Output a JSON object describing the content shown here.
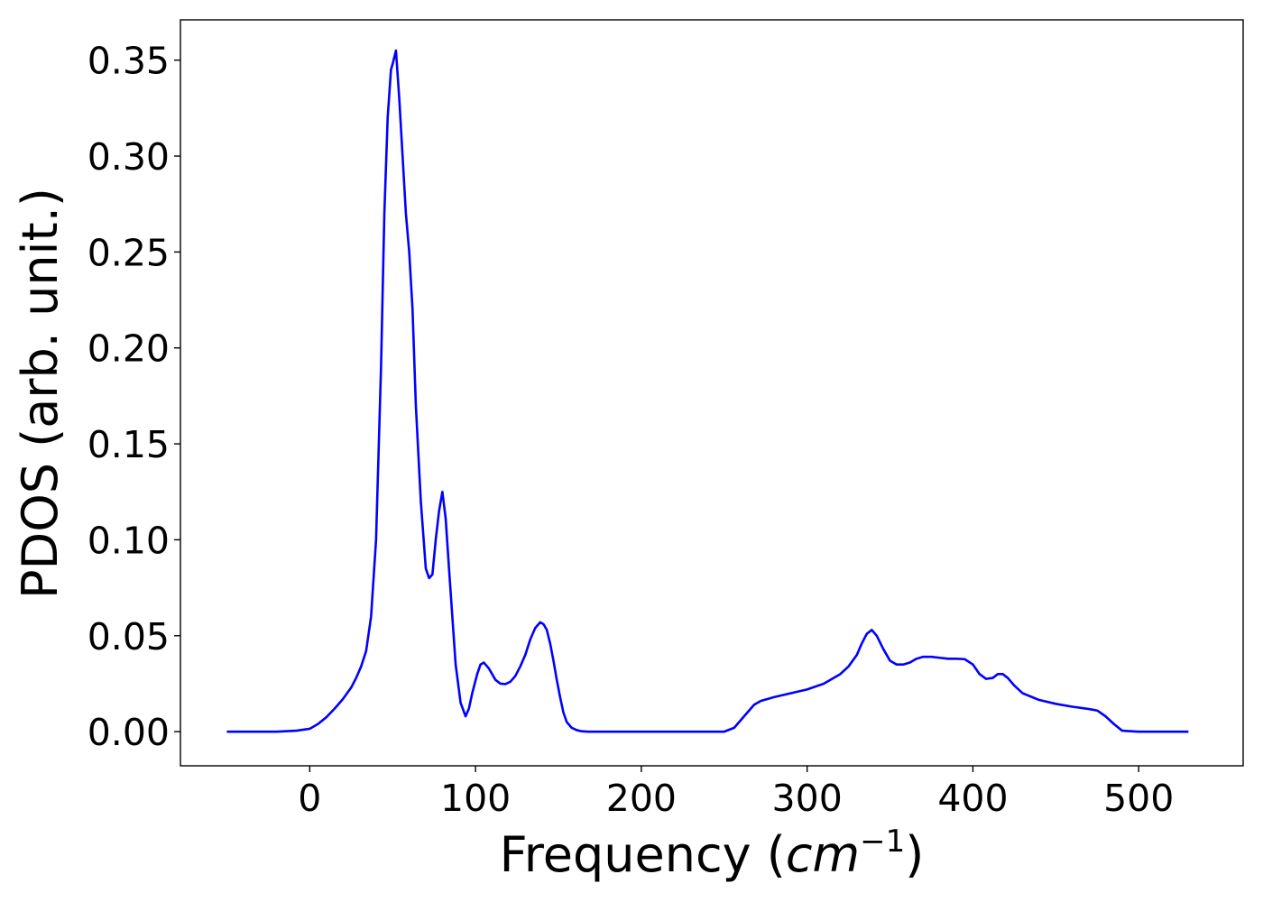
{
  "chart_data": {
    "type": "line",
    "title": "",
    "xlabel_prefix": "Frequency (",
    "xlabel_math": "cm",
    "xlabel_sup": "−1",
    "xlabel_suffix": ")",
    "ylabel": "PDOS (arb. unit.)",
    "xlim": [
      -78,
      563
    ],
    "ylim": [
      -0.0178,
      0.371
    ],
    "xticks": [
      0,
      100,
      200,
      300,
      400,
      500
    ],
    "xtick_labels": [
      "0",
      "100",
      "200",
      "300",
      "400",
      "500"
    ],
    "yticks": [
      0.0,
      0.05,
      0.1,
      0.15,
      0.2,
      0.25,
      0.3,
      0.35
    ],
    "ytick_labels": [
      "0.00",
      "0.05",
      "0.10",
      "0.15",
      "0.20",
      "0.25",
      "0.30",
      "0.35"
    ],
    "grid": false,
    "legend": "none",
    "line_color": "#0000ff",
    "series": [
      {
        "x": [
          -50,
          -20,
          -8,
          0,
          5,
          10,
          15,
          20,
          25,
          28,
          31,
          34,
          37,
          40,
          43,
          45,
          47,
          49,
          50,
          52,
          54,
          56,
          58,
          60,
          62,
          64,
          67,
          70,
          72,
          74,
          76,
          78,
          80,
          82,
          84,
          86,
          88,
          91,
          94,
          96,
          98,
          101,
          103,
          105,
          108,
          110,
          112,
          115,
          118,
          121,
          124,
          127,
          130,
          133,
          136,
          139,
          141,
          143,
          145,
          147,
          149,
          151,
          153,
          155,
          158,
          161,
          164,
          168,
          175,
          200,
          230,
          250,
          256,
          260,
          264,
          268,
          272,
          280,
          290,
          300,
          310,
          320,
          325,
          330,
          333,
          336,
          339,
          342,
          346,
          350,
          354,
          358,
          362,
          366,
          370,
          375,
          380,
          385,
          390,
          395,
          400,
          404,
          408,
          412,
          415,
          418,
          421,
          425,
          430,
          440,
          450,
          460,
          470,
          475,
          480,
          485,
          490,
          500,
          530
        ],
        "y": [
          0.0,
          0.0,
          0.0005,
          0.0015,
          0.004,
          0.0075,
          0.012,
          0.017,
          0.023,
          0.028,
          0.034,
          0.042,
          0.06,
          0.1,
          0.19,
          0.27,
          0.32,
          0.345,
          0.348,
          0.355,
          0.33,
          0.3,
          0.27,
          0.25,
          0.22,
          0.17,
          0.12,
          0.085,
          0.08,
          0.082,
          0.1,
          0.115,
          0.125,
          0.111,
          0.085,
          0.06,
          0.035,
          0.015,
          0.008,
          0.012,
          0.02,
          0.03,
          0.035,
          0.036,
          0.033,
          0.03,
          0.027,
          0.025,
          0.0248,
          0.026,
          0.029,
          0.034,
          0.04,
          0.048,
          0.054,
          0.057,
          0.056,
          0.053,
          0.046,
          0.037,
          0.027,
          0.018,
          0.01,
          0.005,
          0.002,
          0.0008,
          0.0002,
          0.0,
          0.0,
          0.0,
          0.0,
          0.0,
          0.002,
          0.006,
          0.01,
          0.014,
          0.016,
          0.018,
          0.02,
          0.022,
          0.025,
          0.03,
          0.034,
          0.04,
          0.046,
          0.051,
          0.053,
          0.05,
          0.043,
          0.037,
          0.035,
          0.035,
          0.036,
          0.038,
          0.039,
          0.039,
          0.0385,
          0.038,
          0.038,
          0.0378,
          0.035,
          0.03,
          0.0275,
          0.028,
          0.03,
          0.03,
          0.028,
          0.024,
          0.02,
          0.0165,
          0.0145,
          0.013,
          0.0118,
          0.011,
          0.008,
          0.004,
          0.0005,
          0.0,
          0.0
        ]
      }
    ]
  }
}
